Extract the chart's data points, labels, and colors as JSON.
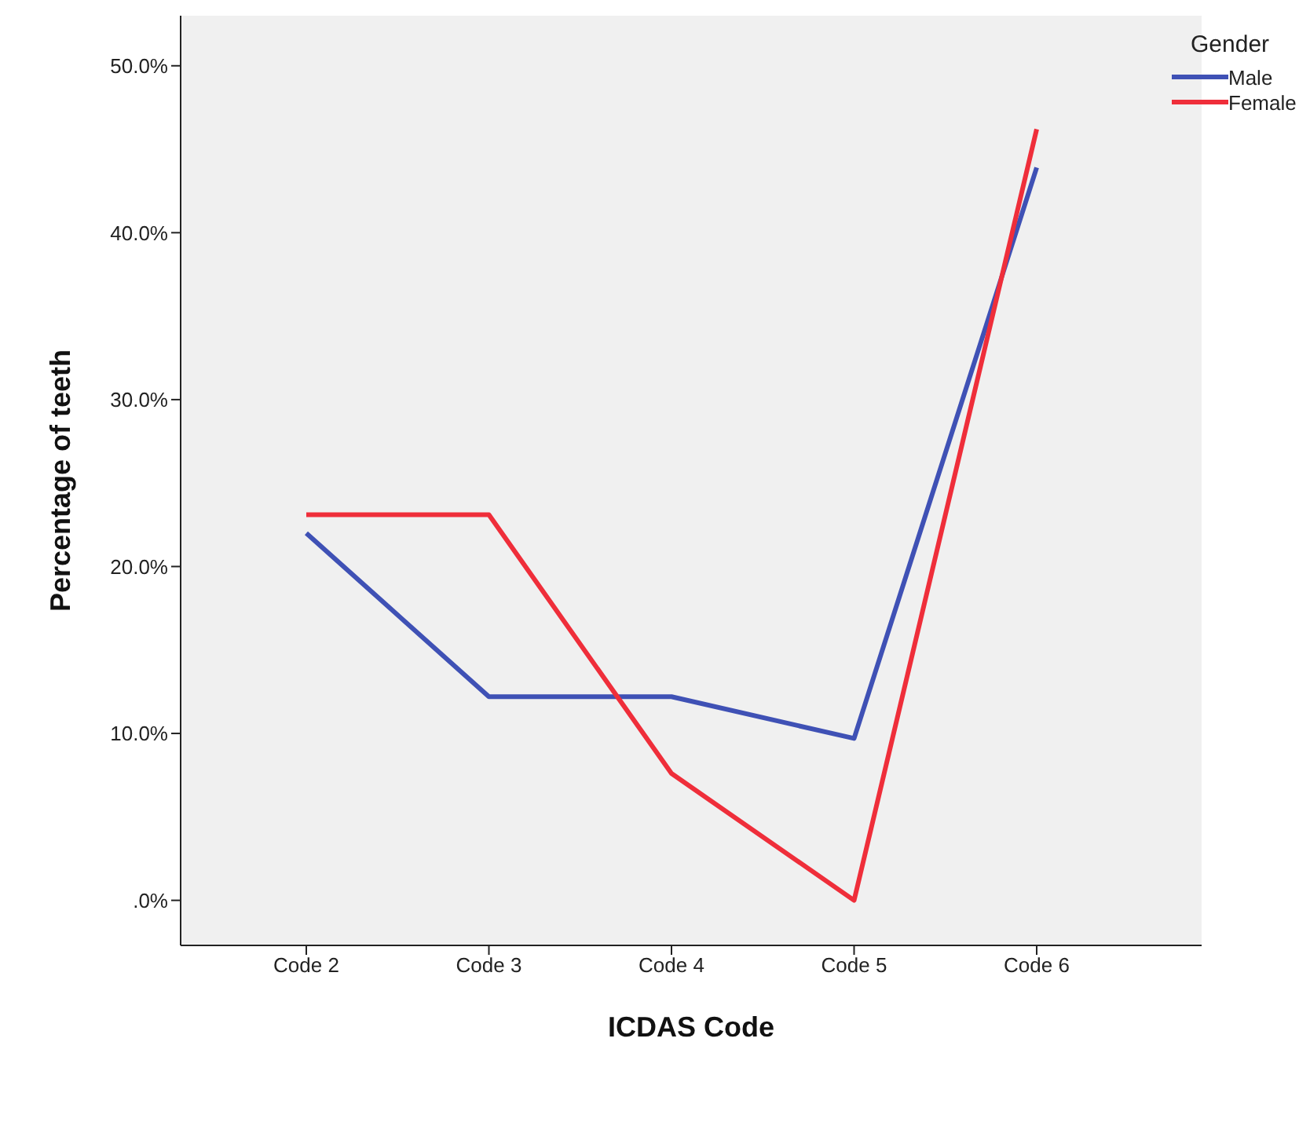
{
  "chart_data": {
    "type": "line",
    "xlabel": "ICDAS Code",
    "ylabel": "Percentage of teeth",
    "legend_title": "Gender",
    "legend": "top right",
    "grid": false,
    "marker": "none",
    "line_style": "solid",
    "categories": [
      "Code 2",
      "Code 3",
      "Code 4",
      "Code 5",
      "Code 6"
    ],
    "series": [
      {
        "name": "Male",
        "color": "#3f51b5",
        "values": [
          22.0,
          12.2,
          12.2,
          9.7,
          43.9
        ]
      },
      {
        "name": "Female",
        "color": "#ef2e3a",
        "values": [
          23.1,
          23.1,
          7.6,
          0,
          46.2
        ]
      }
    ],
    "ylim": [
      -2.7,
      53
    ],
    "yticks": [
      {
        "value": 0,
        "label": ".0%"
      },
      {
        "value": 10,
        "label": "10.0%"
      },
      {
        "value": 20,
        "label": "20.0%"
      },
      {
        "value": 30,
        "label": "30.0%"
      },
      {
        "value": 40,
        "label": "40.0%"
      },
      {
        "value": 50,
        "label": "50.0%"
      }
    ]
  }
}
